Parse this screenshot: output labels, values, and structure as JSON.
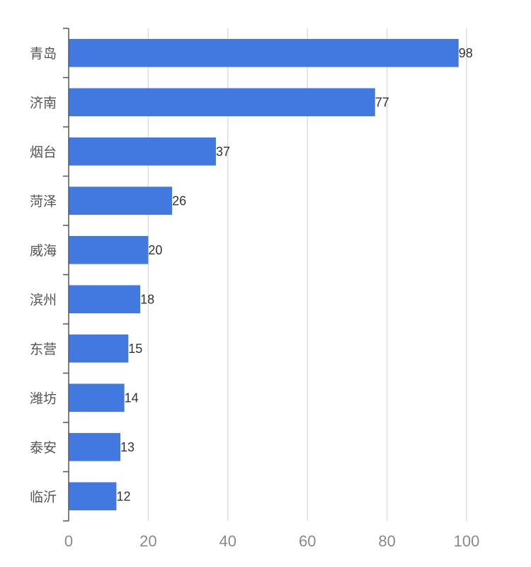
{
  "chart_data": {
    "type": "bar",
    "orientation": "horizontal",
    "categories": [
      "青岛",
      "济南",
      "烟台",
      "菏泽",
      "威海",
      "滨州",
      "东营",
      "潍坊",
      "泰安",
      "临沂"
    ],
    "values": [
      98,
      77,
      37,
      26,
      20,
      18,
      15,
      14,
      13,
      12
    ],
    "x_ticks": [
      "0",
      "20",
      "40",
      "60",
      "80",
      "100"
    ],
    "xlim": [
      0,
      100
    ],
    "title": "",
    "xlabel": "",
    "ylabel": "",
    "grid": "vertical",
    "data_labels": true,
    "legend": "none",
    "colors": {
      "bar": "#4279e0",
      "grid": "#dddddd",
      "axis": "#555555"
    }
  }
}
